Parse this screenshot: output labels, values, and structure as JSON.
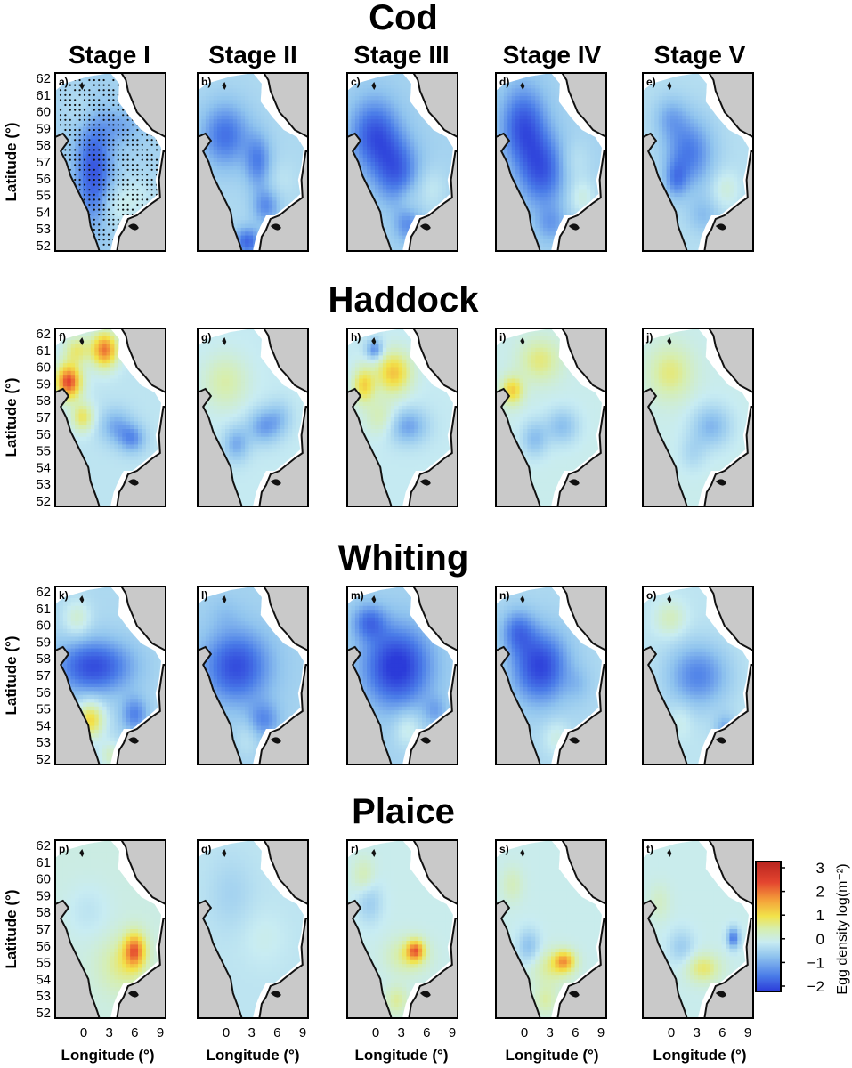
{
  "figure": {
    "species": [
      "Cod",
      "Haddock",
      "Whiting",
      "Plaice"
    ],
    "stages": [
      "Stage I",
      "Stage II",
      "Stage III",
      "Stage IV",
      "Stage V"
    ],
    "panel_letters": [
      "a)",
      "b)",
      "c)",
      "d)",
      "e)",
      "f)",
      "g)",
      "h)",
      "i)",
      "j)",
      "k)",
      "l)",
      "m)",
      "n)",
      "o)",
      "p)",
      "q)",
      "r)",
      "s)",
      "t)"
    ],
    "y_axis": {
      "title": "Latitude (°)",
      "ticks": [
        "62",
        "61",
        "60",
        "59",
        "58",
        "57",
        "56",
        "55",
        "54",
        "53",
        "52"
      ]
    },
    "x_axis": {
      "title": "Longitude (°)",
      "ticks": [
        "0",
        "3",
        "6",
        "9"
      ]
    },
    "colorbar": {
      "title": "Egg density log(m⁻²)",
      "ticks": [
        "3",
        "2",
        "1",
        "0",
        "−1",
        "−2"
      ],
      "min": -2.3,
      "max": 3.4,
      "colors": [
        "#2b3bd9",
        "#4a7ce8",
        "#8fc3ee",
        "#c8ecf2",
        "#d6eeb0",
        "#f2e34a",
        "#f4a23a",
        "#e4452f",
        "#b8241f"
      ]
    },
    "maps": [
      [
        {
          "base": -0.6,
          "blobs": [
            [
              0.35,
              0.55,
              0.17,
              0.3,
              -1.4
            ],
            [
              0.6,
              0.3,
              0.2,
              0.1,
              -0.5
            ],
            [
              0.75,
              0.7,
              0.16,
              0.12,
              0.4
            ],
            [
              0.55,
              0.75,
              0.14,
              0.12,
              0.5
            ],
            [
              0.25,
              0.2,
              0.15,
              0.12,
              0.3
            ]
          ]
        },
        {
          "base": -0.5,
          "blobs": [
            [
              0.25,
              0.35,
              0.22,
              0.18,
              -1.2
            ],
            [
              0.55,
              0.5,
              0.12,
              0.15,
              -1.0
            ],
            [
              0.62,
              0.75,
              0.12,
              0.1,
              -0.9
            ],
            [
              0.45,
              0.95,
              0.12,
              0.08,
              -1.3
            ],
            [
              0.75,
              0.6,
              0.15,
              0.1,
              0.2
            ]
          ]
        },
        {
          "base": -0.6,
          "blobs": [
            [
              0.25,
              0.35,
              0.22,
              0.2,
              -1.4
            ],
            [
              0.45,
              0.55,
              0.2,
              0.18,
              -1.2
            ],
            [
              0.75,
              0.65,
              0.14,
              0.12,
              0.4
            ],
            [
              0.55,
              0.72,
              0.1,
              0.1,
              0.3
            ],
            [
              0.55,
              0.85,
              0.12,
              0.1,
              -0.8
            ]
          ]
        },
        {
          "base": -0.6,
          "blobs": [
            [
              0.25,
              0.3,
              0.2,
              0.22,
              -1.4
            ],
            [
              0.42,
              0.55,
              0.2,
              0.2,
              -1.3
            ],
            [
              0.72,
              0.5,
              0.13,
              0.12,
              0.3
            ],
            [
              0.78,
              0.7,
              0.12,
              0.1,
              0.6
            ],
            [
              0.5,
              0.85,
              0.14,
              0.1,
              -0.6
            ]
          ]
        },
        {
          "base": -0.4,
          "blobs": [
            [
              0.42,
              0.45,
              0.22,
              0.2,
              -1.2
            ],
            [
              0.25,
              0.25,
              0.15,
              0.12,
              -0.6
            ],
            [
              0.75,
              0.65,
              0.12,
              0.1,
              0.5
            ],
            [
              0.55,
              0.8,
              0.14,
              0.1,
              -0.5
            ],
            [
              0.3,
              0.6,
              0.1,
              0.1,
              -0.8
            ]
          ]
        }
      ],
      [
        {
          "base": -0.3,
          "blobs": [
            [
              0.12,
              0.3,
              0.12,
              0.1,
              3.0
            ],
            [
              0.45,
              0.12,
              0.12,
              0.1,
              2.6
            ],
            [
              0.2,
              0.12,
              0.12,
              0.08,
              1.2
            ],
            [
              0.25,
              0.5,
              0.1,
              0.08,
              1.4
            ],
            [
              0.55,
              0.55,
              0.15,
              0.1,
              -0.8
            ],
            [
              0.7,
              0.62,
              0.12,
              0.08,
              -1.0
            ]
          ]
        },
        {
          "base": -0.2,
          "blobs": [
            [
              0.25,
              0.3,
              0.2,
              0.15,
              0.8
            ],
            [
              0.6,
              0.55,
              0.15,
              0.1,
              -1.0
            ],
            [
              0.35,
              0.65,
              0.12,
              0.1,
              -0.9
            ],
            [
              0.75,
              0.5,
              0.12,
              0.1,
              -0.5
            ]
          ]
        },
        {
          "base": -0.2,
          "blobs": [
            [
              0.42,
              0.25,
              0.16,
              0.12,
              1.8
            ],
            [
              0.15,
              0.32,
              0.1,
              0.1,
              1.6
            ],
            [
              0.25,
              0.12,
              0.08,
              0.06,
              -1.3
            ],
            [
              0.55,
              0.55,
              0.18,
              0.1,
              -1.0
            ],
            [
              0.3,
              0.5,
              0.14,
              0.1,
              0.7
            ]
          ]
        },
        {
          "base": -0.1,
          "blobs": [
            [
              0.15,
              0.35,
              0.1,
              0.08,
              1.6
            ],
            [
              0.4,
              0.18,
              0.18,
              0.12,
              1.0
            ],
            [
              0.6,
              0.55,
              0.15,
              0.1,
              -0.8
            ],
            [
              0.35,
              0.62,
              0.12,
              0.1,
              -0.8
            ]
          ]
        },
        {
          "base": -0.1,
          "blobs": [
            [
              0.25,
              0.25,
              0.2,
              0.15,
              1.0
            ],
            [
              0.62,
              0.55,
              0.18,
              0.12,
              -0.9
            ],
            [
              0.45,
              0.7,
              0.12,
              0.1,
              -0.4
            ]
          ]
        }
      ],
      [
        {
          "base": -0.5,
          "blobs": [
            [
              0.35,
              0.45,
              0.35,
              0.15,
              -1.6
            ],
            [
              0.32,
              0.75,
              0.12,
              0.1,
              1.9
            ],
            [
              0.2,
              0.18,
              0.12,
              0.1,
              0.7
            ],
            [
              0.72,
              0.72,
              0.12,
              0.1,
              -1.0
            ],
            [
              0.5,
              0.95,
              0.1,
              0.08,
              0.8
            ]
          ]
        },
        {
          "base": -0.6,
          "blobs": [
            [
              0.35,
              0.45,
              0.3,
              0.2,
              -1.5
            ],
            [
              0.25,
              0.15,
              0.15,
              0.1,
              -0.2
            ],
            [
              0.6,
              0.75,
              0.14,
              0.1,
              -0.8
            ],
            [
              0.45,
              0.85,
              0.1,
              0.1,
              0.3
            ]
          ]
        },
        {
          "base": -0.6,
          "blobs": [
            [
              0.45,
              0.45,
              0.3,
              0.22,
              -1.8
            ],
            [
              0.2,
              0.2,
              0.15,
              0.1,
              -1.0
            ],
            [
              0.55,
              0.8,
              0.12,
              0.1,
              0.6
            ],
            [
              0.8,
              0.7,
              0.1,
              0.08,
              -0.5
            ]
          ]
        },
        {
          "base": -0.5,
          "blobs": [
            [
              0.4,
              0.45,
              0.25,
              0.2,
              -1.7
            ],
            [
              0.2,
              0.25,
              0.15,
              0.12,
              -1.0
            ],
            [
              0.55,
              0.85,
              0.12,
              0.1,
              0.5
            ],
            [
              0.75,
              0.55,
              0.12,
              0.1,
              -0.3
            ]
          ]
        },
        {
          "base": -0.3,
          "blobs": [
            [
              0.5,
              0.5,
              0.28,
              0.18,
              -1.2
            ],
            [
              0.25,
              0.18,
              0.14,
              0.1,
              0.7
            ],
            [
              0.75,
              0.8,
              0.1,
              0.08,
              -0.8
            ],
            [
              0.35,
              0.75,
              0.1,
              0.1,
              0.3
            ]
          ]
        }
      ],
      [
        {
          "base": 0.0,
          "blobs": [
            [
              0.72,
              0.62,
              0.1,
              0.1,
              2.2
            ],
            [
              0.6,
              0.7,
              0.2,
              0.15,
              0.8
            ],
            [
              0.3,
              0.4,
              0.2,
              0.15,
              -0.3
            ]
          ]
        },
        {
          "base": -0.3,
          "blobs": [
            [
              0.6,
              0.55,
              0.2,
              0.15,
              0.2
            ],
            [
              0.3,
              0.3,
              0.2,
              0.2,
              -0.3
            ]
          ]
        },
        {
          "base": -0.1,
          "blobs": [
            [
              0.62,
              0.62,
              0.08,
              0.06,
              2.0
            ],
            [
              0.55,
              0.65,
              0.18,
              0.1,
              0.9
            ],
            [
              0.2,
              0.35,
              0.12,
              0.12,
              -0.6
            ],
            [
              0.45,
              0.9,
              0.1,
              0.08,
              0.8
            ],
            [
              0.15,
              0.2,
              0.1,
              0.1,
              0.6
            ]
          ]
        },
        {
          "base": -0.1,
          "blobs": [
            [
              0.62,
              0.68,
              0.1,
              0.06,
              1.8
            ],
            [
              0.5,
              0.72,
              0.18,
              0.1,
              0.8
            ],
            [
              0.3,
              0.6,
              0.1,
              0.1,
              -0.8
            ],
            [
              0.15,
              0.25,
              0.1,
              0.1,
              0.5
            ],
            [
              0.45,
              0.9,
              0.1,
              0.08,
              0.7
            ]
          ]
        },
        {
          "base": -0.1,
          "blobs": [
            [
              0.55,
              0.72,
              0.15,
              0.08,
              1.1
            ],
            [
              0.82,
              0.55,
              0.06,
              0.06,
              -1.5
            ],
            [
              0.15,
              0.35,
              0.1,
              0.1,
              0.4
            ],
            [
              0.35,
              0.6,
              0.12,
              0.1,
              -0.6
            ]
          ]
        }
      ]
    ]
  }
}
